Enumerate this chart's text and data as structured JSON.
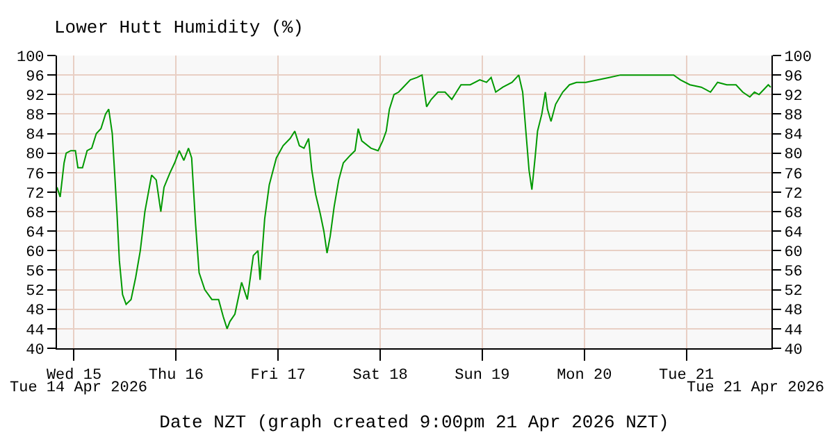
{
  "chart_data": {
    "type": "line",
    "title": "Lower Hutt Humidity (%)",
    "xlabel": "Date NZT (graph created 9:00pm 21 Apr 2026 NZT)",
    "annotations": [
      "Tue 14 Apr 2026",
      "Tue 21 Apr 2026"
    ],
    "xlim": [
      "2026-04-14T20:00",
      "2026-04-21T20:00"
    ],
    "xticks": [
      {
        "value": "2026-04-15",
        "label": "Wed 15"
      },
      {
        "value": "2026-04-16",
        "label": "Thu 16"
      },
      {
        "value": "2026-04-17",
        "label": "Fri 17"
      },
      {
        "value": "2026-04-18",
        "label": "Sat 18"
      },
      {
        "value": "2026-04-19",
        "label": "Sun 19"
      },
      {
        "value": "2026-04-20",
        "label": "Mon 20"
      },
      {
        "value": "2026-04-21",
        "label": "Tue 21"
      }
    ],
    "ylim": [
      40,
      100
    ],
    "yticks": [
      40,
      44,
      48,
      52,
      56,
      60,
      64,
      68,
      72,
      76,
      80,
      84,
      88,
      92,
      96,
      100
    ],
    "y2lim": [
      40,
      100
    ],
    "y2ticks": [
      40,
      44,
      48,
      52,
      56,
      60,
      64,
      68,
      72,
      76,
      80,
      84,
      88,
      92,
      96,
      100
    ],
    "grid": true,
    "marker": "none",
    "line_style": "solid",
    "x": [
      "2026-04-14T20:00",
      "2026-04-14T20:45",
      "2026-04-14T21:40",
      "2026-04-14T22:10",
      "2026-04-14T23:15",
      "2026-04-15T00:20",
      "2026-04-15T00:55",
      "2026-04-15T02:00",
      "2026-04-15T03:05",
      "2026-04-15T04:10",
      "2026-04-15T05:15",
      "2026-04-15T06:20",
      "2026-04-15T07:25",
      "2026-04-15T08:10",
      "2026-04-15T09:00",
      "2026-04-15T09:35",
      "2026-04-15T10:05",
      "2026-04-15T10:40",
      "2026-04-15T11:25",
      "2026-04-15T12:15",
      "2026-04-15T13:25",
      "2026-04-15T14:30",
      "2026-04-15T15:35",
      "2026-04-15T16:40",
      "2026-04-15T18:15",
      "2026-04-15T19:20",
      "2026-04-15T20:25",
      "2026-04-15T21:10",
      "2026-04-15T22:35",
      "2026-04-15T23:40",
      "2026-04-16T00:45",
      "2026-04-16T01:50",
      "2026-04-16T02:55",
      "2026-04-16T03:40",
      "2026-04-16T04:35",
      "2026-04-16T05:25",
      "2026-04-16T06:45",
      "2026-04-16T08:25",
      "2026-04-16T10:00",
      "2026-04-16T11:05",
      "2026-04-16T12:00",
      "2026-04-16T12:40",
      "2026-04-16T13:50",
      "2026-04-16T15:25",
      "2026-04-16T16:45",
      "2026-04-16T18:10",
      "2026-04-16T19:15",
      "2026-04-16T19:45",
      "2026-04-16T20:50",
      "2026-04-16T21:55",
      "2026-04-16T23:35",
      "2026-04-17T01:10",
      "2026-04-17T02:50",
      "2026-04-17T03:55",
      "2026-04-17T05:00",
      "2026-04-17T06:05",
      "2026-04-17T07:10",
      "2026-04-17T07:55",
      "2026-04-17T08:50",
      "2026-04-17T09:55",
      "2026-04-17T10:45",
      "2026-04-17T11:30",
      "2026-04-17T12:15",
      "2026-04-17T13:10",
      "2026-04-17T14:15",
      "2026-04-17T15:20",
      "2026-04-17T16:55",
      "2026-04-17T18:05",
      "2026-04-17T18:50",
      "2026-04-17T19:40",
      "2026-04-17T21:50",
      "2026-04-17T23:30",
      "2026-04-18T00:35",
      "2026-04-18T01:25",
      "2026-04-18T02:10",
      "2026-04-18T03:15",
      "2026-04-18T04:20",
      "2026-04-18T05:25",
      "2026-04-18T07:05",
      "2026-04-18T08:40",
      "2026-04-18T09:50",
      "2026-04-18T10:55",
      "2026-04-18T12:00",
      "2026-04-18T13:35",
      "2026-04-18T15:15",
      "2026-04-18T16:50",
      "2026-04-18T19:00",
      "2026-04-18T21:10",
      "2026-04-18T23:25",
      "2026-04-19T01:00",
      "2026-04-19T02:05",
      "2026-04-19T03:10",
      "2026-04-19T04:50",
      "2026-04-19T07:00",
      "2026-04-19T08:35",
      "2026-04-19T09:30",
      "2026-04-19T10:15",
      "2026-04-19T11:00",
      "2026-04-19T11:40",
      "2026-04-19T12:25",
      "2026-04-19T13:00",
      "2026-04-19T14:00",
      "2026-04-19T14:50",
      "2026-04-19T15:20",
      "2026-04-19T16:10",
      "2026-04-19T17:15",
      "2026-04-19T18:55",
      "2026-04-19T20:30",
      "2026-04-19T22:10",
      "2026-04-20T00:20",
      "2026-04-20T03:05",
      "2026-04-20T05:50",
      "2026-04-20T08:30",
      "2026-04-20T11:50",
      "2026-04-20T15:00",
      "2026-04-20T18:15",
      "2026-04-20T21:00",
      "2026-04-20T22:35",
      "2026-04-21T00:50",
      "2026-04-21T03:30",
      "2026-04-21T05:40",
      "2026-04-21T07:20",
      "2026-04-21T09:30",
      "2026-04-21T11:40",
      "2026-04-21T13:15",
      "2026-04-21T14:55",
      "2026-04-21T16:00",
      "2026-04-21T17:05",
      "2026-04-21T18:10",
      "2026-04-21T19:15",
      "2026-04-21T19:50"
    ],
    "series": [
      {
        "color": "#009900",
        "values": [
          73,
          71,
          78,
          80,
          80.5,
          80.5,
          77,
          77,
          80.5,
          81,
          84,
          85,
          88,
          89,
          84,
          75.5,
          68,
          58,
          51,
          49,
          50,
          54.5,
          60,
          68,
          75.5,
          74.5,
          68,
          73,
          76,
          78,
          80.5,
          78.5,
          81,
          79,
          65.5,
          55.5,
          52,
          50,
          50,
          46.5,
          44,
          45.5,
          47,
          53.5,
          50,
          59,
          60,
          54,
          66.5,
          73.5,
          79,
          81.5,
          83,
          84.5,
          81.5,
          81,
          83,
          76.5,
          71.5,
          67.5,
          64,
          59.5,
          63,
          69,
          74.5,
          78,
          79.5,
          80.5,
          85,
          82.5,
          81,
          80.5,
          82.5,
          84.5,
          89,
          92,
          92.5,
          93.5,
          95,
          95.5,
          96,
          89.5,
          91,
          92.5,
          92.5,
          91,
          94,
          94,
          95,
          94.5,
          95.5,
          92.5,
          93.5,
          94.5,
          96,
          92.5,
          84.5,
          76.5,
          72.5,
          79,
          84.5,
          88,
          92.5,
          89,
          86.5,
          90,
          92.5,
          94,
          94.5,
          94.5,
          95,
          95.5,
          96,
          96,
          96,
          96,
          96,
          95,
          94,
          93.5,
          92.5,
          94.5,
          94,
          94,
          92.5,
          91.5,
          92.5,
          92,
          93,
          94,
          93.5
        ]
      }
    ]
  }
}
